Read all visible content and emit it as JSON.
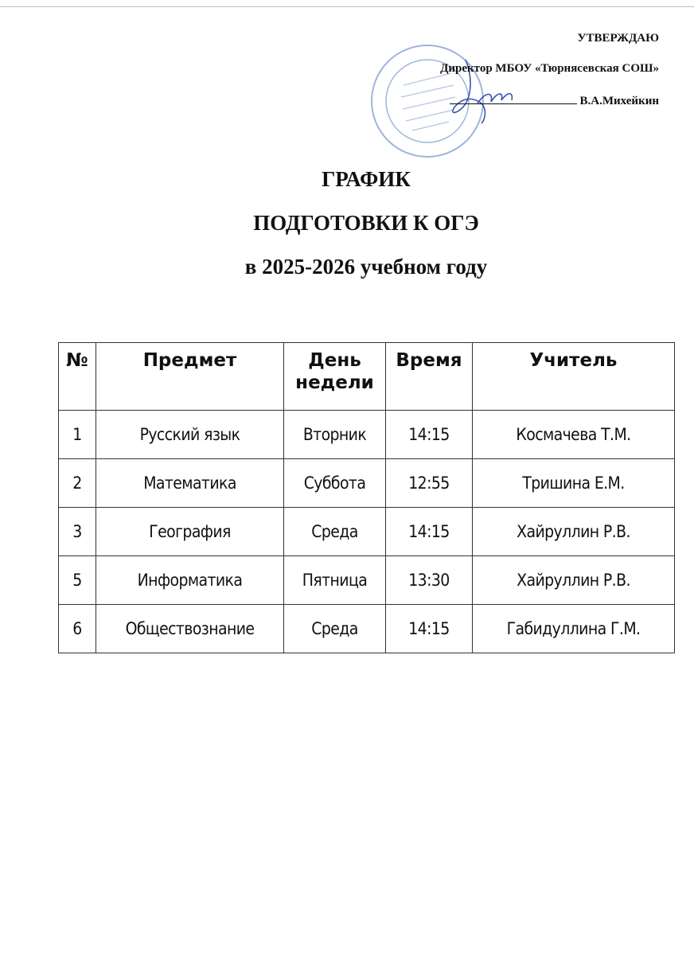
{
  "approval": {
    "heading": "УТВЕРЖДАЮ",
    "position": "Директор МБОУ «Тюрнясевская СОШ»",
    "signatory": "В.А.Михейкин",
    "stamp_color": "#8fa8d8",
    "signature_color": "#3c55b0"
  },
  "title": {
    "line1": "ГРАФИК",
    "line2": "ПОДГОТОВКИ К ОГЭ",
    "line3": "в 2025-2026 учебном году"
  },
  "table": {
    "headers": [
      "№",
      "Предмет",
      "День недели",
      "Время",
      "Учитель"
    ],
    "rows": [
      [
        "1",
        "Русский язык",
        "Вторник",
        "14:15",
        "Космачева Т.М."
      ],
      [
        "2",
        "Математика",
        "Суббота",
        "12:55",
        "Тришина Е.М."
      ],
      [
        "3",
        "География",
        "Среда",
        "14:15",
        "Хайруллин Р.В."
      ],
      [
        "5",
        "Информатика",
        "Пятница",
        "13:30",
        "Хайруллин Р.В."
      ],
      [
        "6",
        "Обществознание",
        "Среда",
        "14:15",
        "Габидуллина Г.М."
      ]
    ]
  }
}
